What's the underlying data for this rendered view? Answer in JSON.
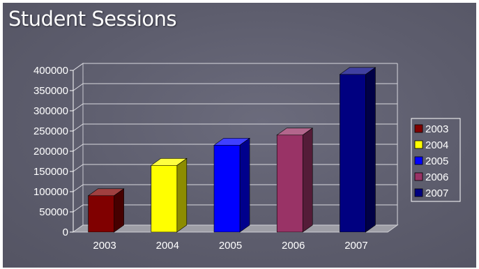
{
  "slide": {
    "title": "Student Sessions"
  },
  "chart_data": {
    "type": "bar",
    "title": "Student Sessions",
    "xlabel": "",
    "ylabel": "",
    "categories": [
      "2003",
      "2004",
      "2005",
      "2006",
      "2007"
    ],
    "values": [
      90000,
      165000,
      215000,
      240000,
      390000
    ],
    "ylim": [
      0,
      400000
    ],
    "yticks": [
      0,
      50000,
      100000,
      150000,
      200000,
      250000,
      300000,
      350000,
      400000
    ],
    "ytick_labels": [
      "0",
      "50000",
      "100000",
      "150000",
      "200000",
      "250000",
      "300000",
      "350000",
      "400000"
    ],
    "colors": [
      "#800000",
      "#ffff00",
      "#0000ff",
      "#993366",
      "#000080"
    ],
    "grid": true,
    "bar_style": "3d",
    "legend": {
      "position": "right",
      "entries": [
        "2003",
        "2004",
        "2005",
        "2006",
        "2007"
      ]
    }
  }
}
